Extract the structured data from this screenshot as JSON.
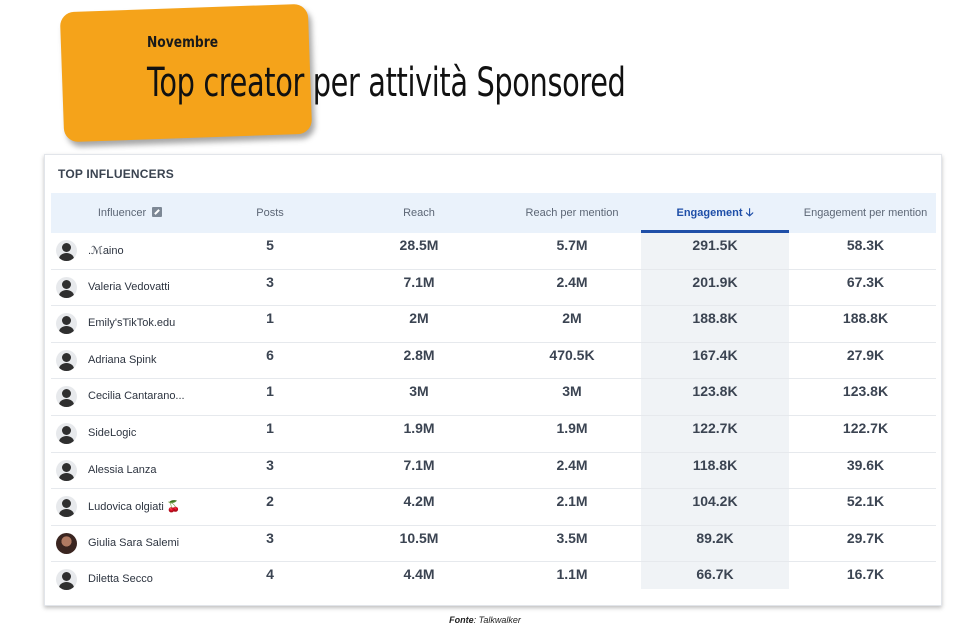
{
  "header": {
    "month": "Novembre",
    "title": "Top creator per attività Sponsored"
  },
  "panel": {
    "title": "TOP INFLUENCERS",
    "columns": {
      "influencer": "Influencer",
      "posts": "Posts",
      "reach": "Reach",
      "reach_per_mention": "Reach per mention",
      "engagement": "Engagement",
      "engagement_per_mention": "Engagement per mention"
    },
    "sort_column": "engagement",
    "sort_direction": "descending",
    "rows": [
      {
        "name": ".ℳaino",
        "posts": "5",
        "reach": "28.5M",
        "reach_per_mention": "5.7M",
        "engagement": "291.5K",
        "engagement_per_mention": "58.3K",
        "avatar": "default-avatar"
      },
      {
        "name": "Valeria Vedovatti",
        "posts": "3",
        "reach": "7.1M",
        "reach_per_mention": "2.4M",
        "engagement": "201.9K",
        "engagement_per_mention": "67.3K",
        "avatar": "default-avatar"
      },
      {
        "name": "Emily'sTikTok.edu",
        "posts": "1",
        "reach": "2M",
        "reach_per_mention": "2M",
        "engagement": "188.8K",
        "engagement_per_mention": "188.8K",
        "avatar": "default-avatar"
      },
      {
        "name": "Adriana Spink",
        "posts": "6",
        "reach": "2.8M",
        "reach_per_mention": "470.5K",
        "engagement": "167.4K",
        "engagement_per_mention": "27.9K",
        "avatar": "default-avatar"
      },
      {
        "name": "Cecilia Cantarano...",
        "posts": "1",
        "reach": "3M",
        "reach_per_mention": "3M",
        "engagement": "123.8K",
        "engagement_per_mention": "123.8K",
        "avatar": "default-avatar"
      },
      {
        "name": "SideLogic",
        "posts": "1",
        "reach": "1.9M",
        "reach_per_mention": "1.9M",
        "engagement": "122.7K",
        "engagement_per_mention": "122.7K",
        "avatar": "default-avatar"
      },
      {
        "name": "Alessia Lanza",
        "posts": "3",
        "reach": "7.1M",
        "reach_per_mention": "2.4M",
        "engagement": "118.8K",
        "engagement_per_mention": "39.6K",
        "avatar": "default-avatar"
      },
      {
        "name": "Ludovica olgiati 🍒",
        "posts": "2",
        "reach": "4.2M",
        "reach_per_mention": "2.1M",
        "engagement": "104.2K",
        "engagement_per_mention": "52.1K",
        "avatar": "default-avatar"
      },
      {
        "name": "Giulia Sara Salemi",
        "posts": "3",
        "reach": "10.5M",
        "reach_per_mention": "3.5M",
        "engagement": "89.2K",
        "engagement_per_mention": "29.7K",
        "avatar": "photo-avatar"
      },
      {
        "name": "Diletta Secco",
        "posts": "4",
        "reach": "4.4M",
        "reach_per_mention": "1.1M",
        "engagement": "66.7K",
        "engagement_per_mention": "16.7K",
        "avatar": "default-avatar"
      }
    ]
  },
  "footer": {
    "source_label": "Fonte",
    "source_value": ": Talkwalker"
  },
  "colors": {
    "accent_orange": "#f5a31a",
    "active_sort": "#1f4fa8",
    "header_bg": "#eaf2fb"
  }
}
